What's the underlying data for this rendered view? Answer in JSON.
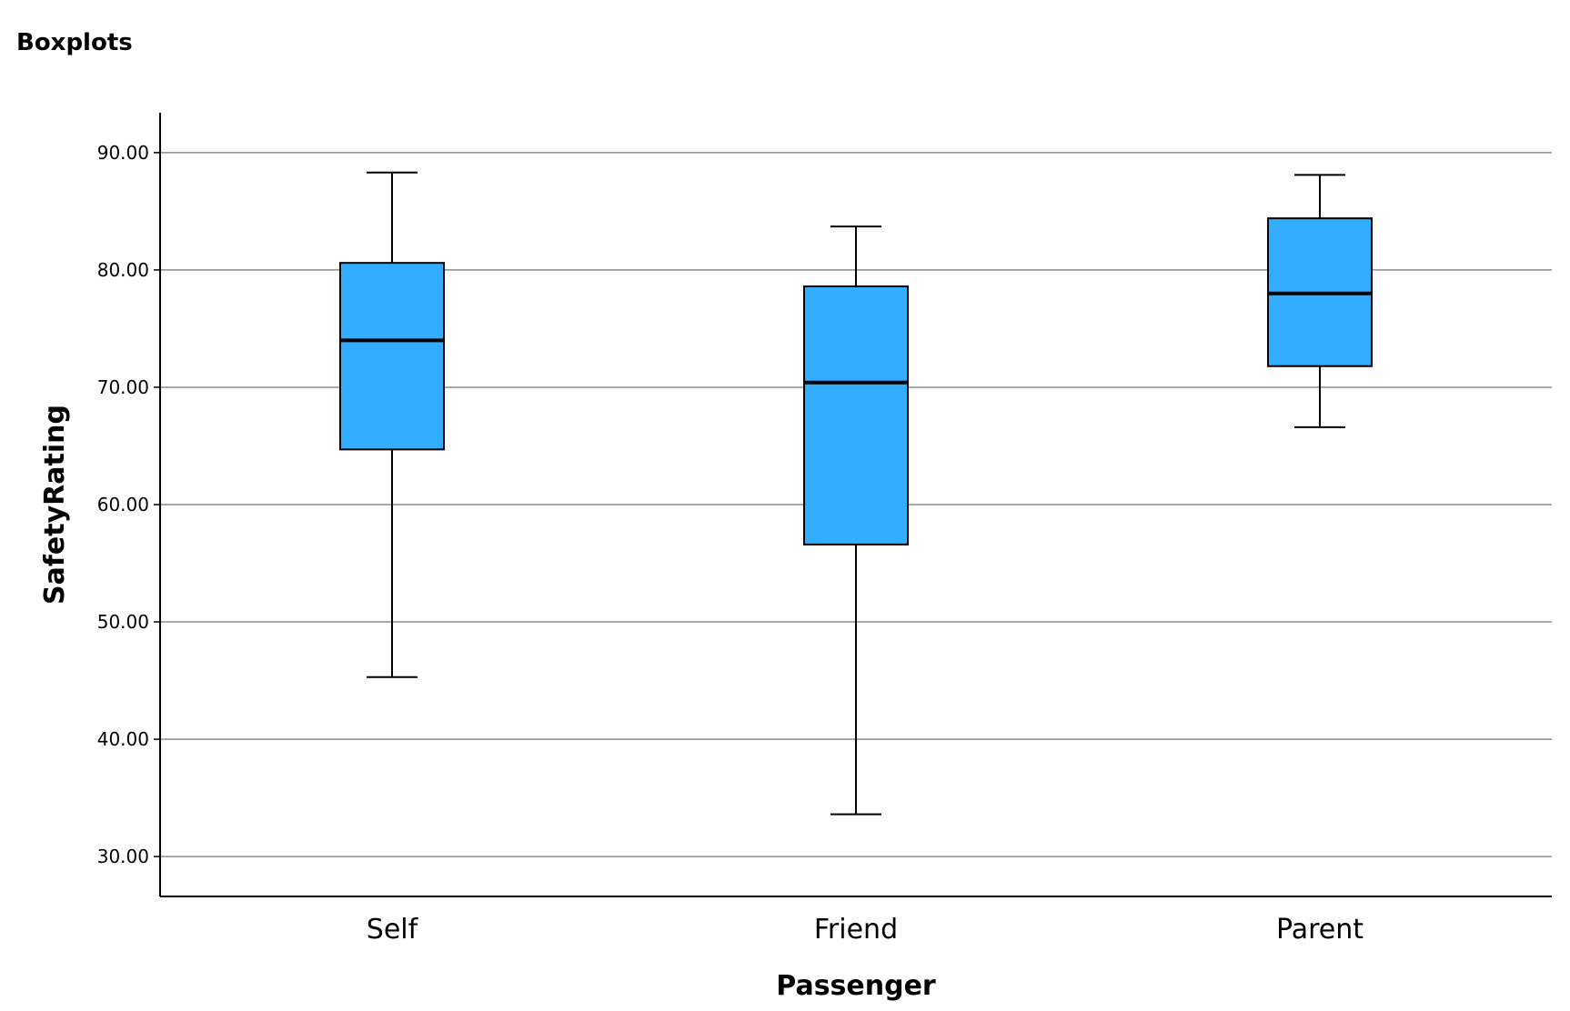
{
  "header": {
    "title": "Boxplots"
  },
  "chart_data": {
    "type": "boxplot",
    "xlabel": "Passenger",
    "ylabel": "SafetyRating",
    "ylim": [
      26.6,
      93.4
    ],
    "yticks": [
      30,
      40,
      50,
      60,
      70,
      80,
      90
    ],
    "ytick_labels": [
      "30.00",
      "40.00",
      "50.00",
      "60.00",
      "70.00",
      "80.00",
      "90.00"
    ],
    "grid": true,
    "box_color": "#33adff",
    "categories": [
      "Self",
      "Friend",
      "Parent"
    ],
    "boxes": [
      {
        "category": "Self",
        "min": 45.3,
        "q1": 64.7,
        "median": 74.0,
        "q3": 80.6,
        "max": 88.3
      },
      {
        "category": "Friend",
        "min": 33.6,
        "q1": 56.6,
        "median": 70.4,
        "q3": 78.6,
        "max": 83.7
      },
      {
        "category": "Parent",
        "min": 66.6,
        "q1": 71.8,
        "median": 78.0,
        "q3": 84.4,
        "max": 88.1
      }
    ]
  }
}
